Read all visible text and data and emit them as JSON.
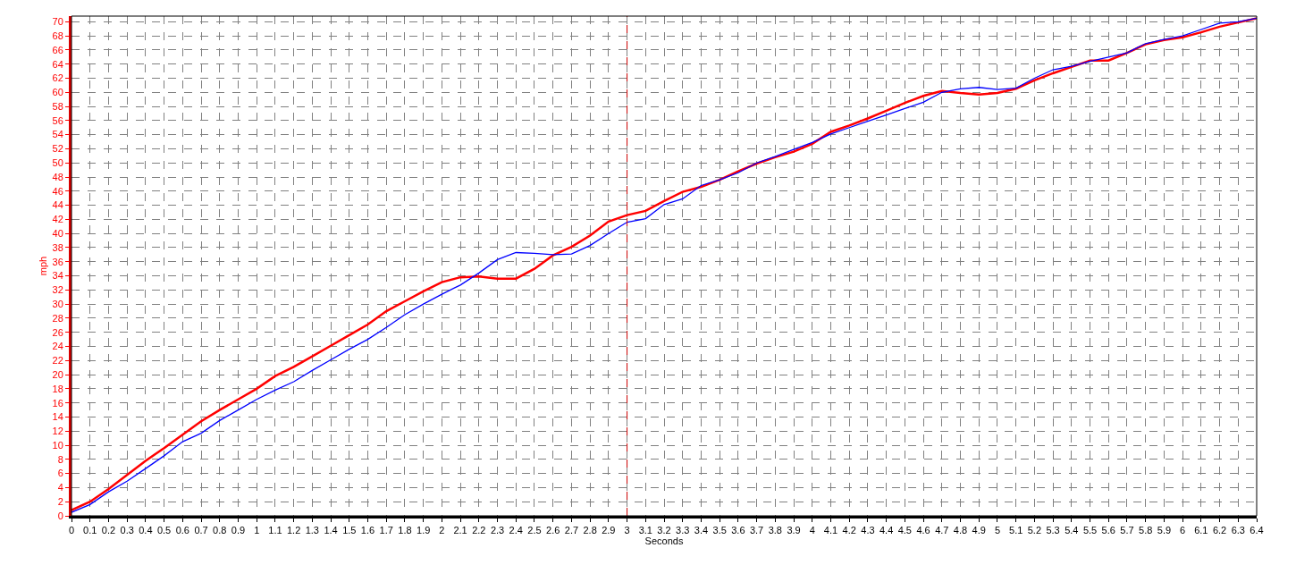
{
  "chart_data": {
    "type": "line",
    "xlabel": "Seconds",
    "ylabel": "mph",
    "x": [
      0,
      0.1,
      0.2,
      0.3,
      0.4,
      0.5,
      0.6,
      0.7,
      0.8,
      0.9,
      1,
      1.1,
      1.2,
      1.3,
      1.4,
      1.5,
      1.6,
      1.7,
      1.8,
      1.9,
      2,
      2.1,
      2.2,
      2.3,
      2.4,
      2.5,
      2.6,
      2.7,
      2.8,
      2.9,
      3,
      3.1,
      3.2,
      3.3,
      3.4,
      3.5,
      3.6,
      3.7,
      3.8,
      3.9,
      4,
      4.1,
      4.2,
      4.3,
      4.4,
      4.5,
      4.6,
      4.7,
      4.8,
      4.9,
      5,
      5.1,
      5.2,
      5.3,
      5.4,
      5.5,
      5.6,
      5.7,
      5.8,
      5.9,
      6,
      6.1,
      6.2,
      6.3,
      6.4
    ],
    "series": [
      {
        "color": "#ff0000",
        "values": [
          0.8,
          2,
          3.8,
          5.8,
          7.8,
          9.6,
          11.5,
          13.4,
          15,
          16.5,
          18,
          19.8,
          21.1,
          22.6,
          24.1,
          25.6,
          27.1,
          29,
          30.4,
          31.8,
          33.1,
          33.8,
          33.9,
          33.6,
          33.6,
          35,
          36.9,
          38.1,
          39.7,
          41.7,
          42.6,
          43.2,
          44.6,
          45.9,
          46.6,
          47.6,
          48.8,
          49.9,
          50.8,
          51.6,
          52.7,
          54.4,
          55.3,
          56.3,
          57.4,
          58.5,
          59.5,
          60.2,
          59.9,
          59.7,
          59.9,
          60.5,
          61.7,
          62.7,
          63.6,
          64.5,
          64.5,
          65.6,
          66.8,
          67.4,
          67.8,
          68.5,
          69.3,
          69.9,
          70.5
        ]
      },
      {
        "color": "#0000ff",
        "values": [
          0.5,
          1.6,
          3.4,
          4.9,
          6.7,
          8.5,
          10.5,
          11.7,
          13.5,
          15,
          16.5,
          17.8,
          19,
          20.6,
          22.1,
          23.6,
          25,
          26.7,
          28.5,
          30,
          31.4,
          32.7,
          34.4,
          36.3,
          37.3,
          37.2,
          37,
          37.1,
          38.3,
          40,
          41.6,
          42.1,
          44.1,
          44.9,
          46.8,
          47.6,
          48.6,
          50,
          50.9,
          51.9,
          52.9,
          54.1,
          55,
          55.9,
          56.8,
          57.7,
          58.6,
          60,
          60.5,
          60.7,
          60.4,
          60.6,
          62,
          63.2,
          63.7,
          64.4,
          65,
          65.6,
          66.9,
          67.5,
          68,
          68.9,
          69.8,
          70,
          70.5
        ]
      }
    ],
    "xlim": [
      0,
      6.4
    ],
    "ylim": [
      0,
      70.8
    ],
    "xticks": [
      0,
      0.1,
      0.2,
      0.3,
      0.4,
      0.5,
      0.6,
      0.7,
      0.8,
      0.9,
      1,
      1.1,
      1.2,
      1.3,
      1.4,
      1.5,
      1.6,
      1.7,
      1.8,
      1.9,
      2,
      2.1,
      2.2,
      2.3,
      2.4,
      2.5,
      2.6,
      2.7,
      2.8,
      2.9,
      3,
      3.1,
      3.2,
      3.3,
      3.4,
      3.5,
      3.6,
      3.7,
      3.8,
      3.9,
      4,
      4.1,
      4.2,
      4.3,
      4.4,
      4.5,
      4.6,
      4.7,
      4.8,
      4.9,
      5,
      5.1,
      5.2,
      5.3,
      5.4,
      5.5,
      5.6,
      5.7,
      5.8,
      5.9,
      6,
      6.1,
      6.2,
      6.3,
      6.4
    ],
    "yticks": [
      0,
      2,
      4,
      6,
      8,
      10,
      12,
      14,
      16,
      18,
      20,
      22,
      24,
      26,
      28,
      30,
      32,
      34,
      36,
      38,
      40,
      42,
      44,
      46,
      48,
      50,
      52,
      54,
      56,
      58,
      60,
      62,
      64,
      66,
      68,
      70
    ],
    "ref_lines": [
      {
        "axis": "x",
        "value": 3,
        "color": "#cc0000",
        "line_style": "dashed"
      }
    ],
    "grid": true,
    "legend": false,
    "marker": "none",
    "line_style": "solid"
  }
}
